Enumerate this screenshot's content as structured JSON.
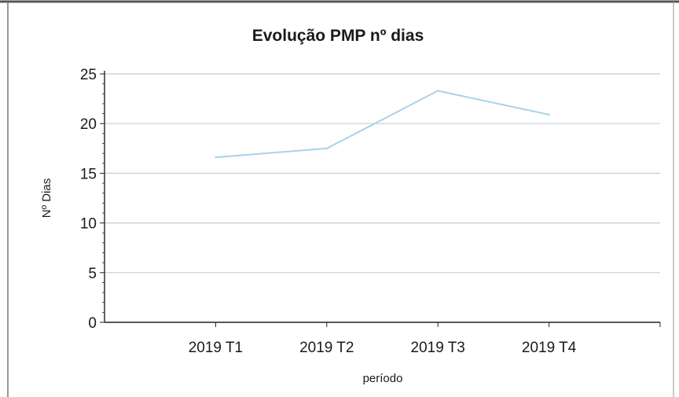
{
  "chart_data": {
    "type": "line",
    "title": "Evolução PMP nº dias",
    "xlabel": "período",
    "ylabel": "Nº Dias",
    "categories": [
      "2019 T1",
      "2019 T2",
      "2019 T3",
      "2019 T4"
    ],
    "series": [
      {
        "values": [
          16.6,
          17.5,
          23.3,
          20.9
        ],
        "color": "#a9d3ea"
      }
    ],
    "ylim": [
      0,
      25
    ],
    "yticks": [
      "0",
      "5",
      "10",
      "15",
      "20",
      "25"
    ],
    "grid": true,
    "legend": "none",
    "colors": {
      "grid": "#c5cbd8",
      "axis": "#222222",
      "frame": "#444444",
      "line": "#a9d3ea"
    }
  }
}
